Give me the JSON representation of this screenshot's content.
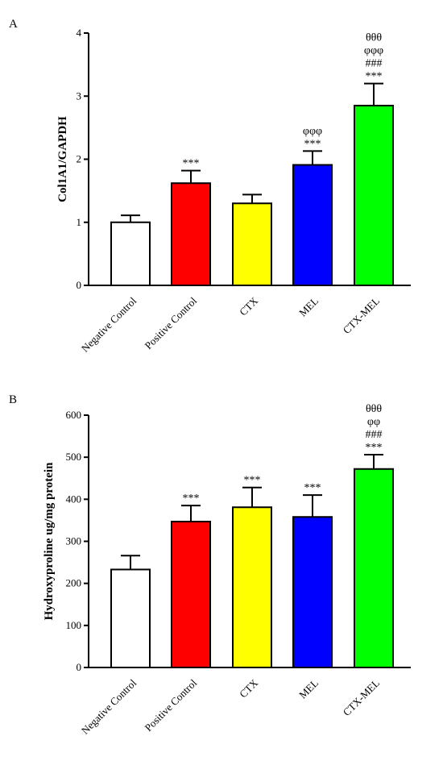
{
  "chart_data": [
    {
      "type": "bar",
      "panel": "A",
      "title": "",
      "xlabel": "",
      "ylabel": "Col1A1/GAPDH",
      "ylim": [
        0,
        4
      ],
      "yticks": [
        "0",
        "1",
        "2",
        "3",
        "4"
      ],
      "categories": [
        "Negative Control",
        "Positive Control",
        "CTX",
        "MEL",
        "CTX-MEL"
      ],
      "values": [
        1.0,
        1.62,
        1.3,
        1.91,
        2.85
      ],
      "errors": [
        0.11,
        0.2,
        0.14,
        0.22,
        0.35
      ],
      "colors": [
        "#ffffff",
        "#ff0000",
        "#ffff00",
        "#0000ff",
        "#00ff00"
      ],
      "annotations": [
        [],
        [
          "***"
        ],
        [],
        [
          "φφφ",
          "***"
        ],
        [
          "θθθ",
          "φφφ",
          "###",
          "***"
        ]
      ]
    },
    {
      "type": "bar",
      "panel": "B",
      "title": "",
      "xlabel": "",
      "ylabel": "Hydroxyproline ug/mg protein",
      "ylim": [
        0,
        600
      ],
      "yticks": [
        "0",
        "100",
        "200",
        "300",
        "400",
        "500",
        "600"
      ],
      "categories": [
        "Negative Control",
        "Positive Control",
        "CTX",
        "MEL",
        "CTX-MEL"
      ],
      "values": [
        233,
        347,
        381,
        358,
        472
      ],
      "errors": [
        33,
        38,
        47,
        52,
        34
      ],
      "colors": [
        "#ffffff",
        "#ff0000",
        "#ffff00",
        "#0000ff",
        "#00ff00"
      ],
      "annotations": [
        [],
        [
          "***"
        ],
        [
          "***"
        ],
        [
          "***"
        ],
        [
          "θθθ",
          "φφ",
          "###",
          "***"
        ]
      ]
    }
  ]
}
